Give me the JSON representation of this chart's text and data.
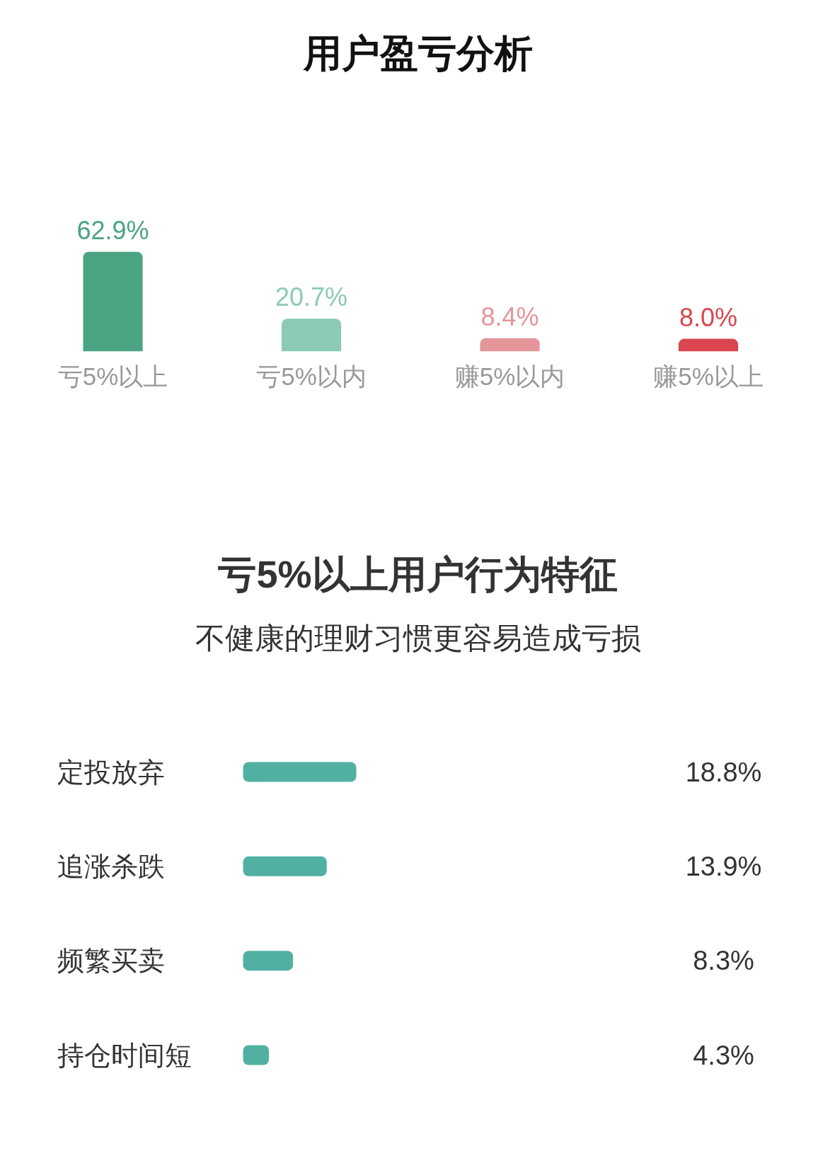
{
  "chart_data": [
    {
      "type": "bar",
      "title": "用户盈亏分析",
      "categories": [
        "亏5%以上",
        "亏5%以内",
        "赚5%以内",
        "赚5%以上"
      ],
      "values": [
        62.9,
        20.7,
        8.4,
        8.0
      ],
      "colors": [
        "#4aa482",
        "#8ccab4",
        "#e4959a",
        "#d9464f"
      ],
      "value_labels": [
        "62.9%",
        "20.7%",
        "8.4%",
        "8.0%"
      ]
    },
    {
      "type": "bar",
      "orientation": "horizontal",
      "title": "亏5%以上用户行为特征",
      "subtitle": "不健康的理财习惯更容易造成亏损",
      "categories": [
        "定投放弃",
        "追涨杀跌",
        "频繁买卖",
        "持仓时间短"
      ],
      "values": [
        18.8,
        13.9,
        8.3,
        4.3
      ],
      "color": "#52b0a2",
      "value_labels": [
        "18.8%",
        "13.9%",
        "8.3%",
        "4.3%"
      ]
    }
  ]
}
